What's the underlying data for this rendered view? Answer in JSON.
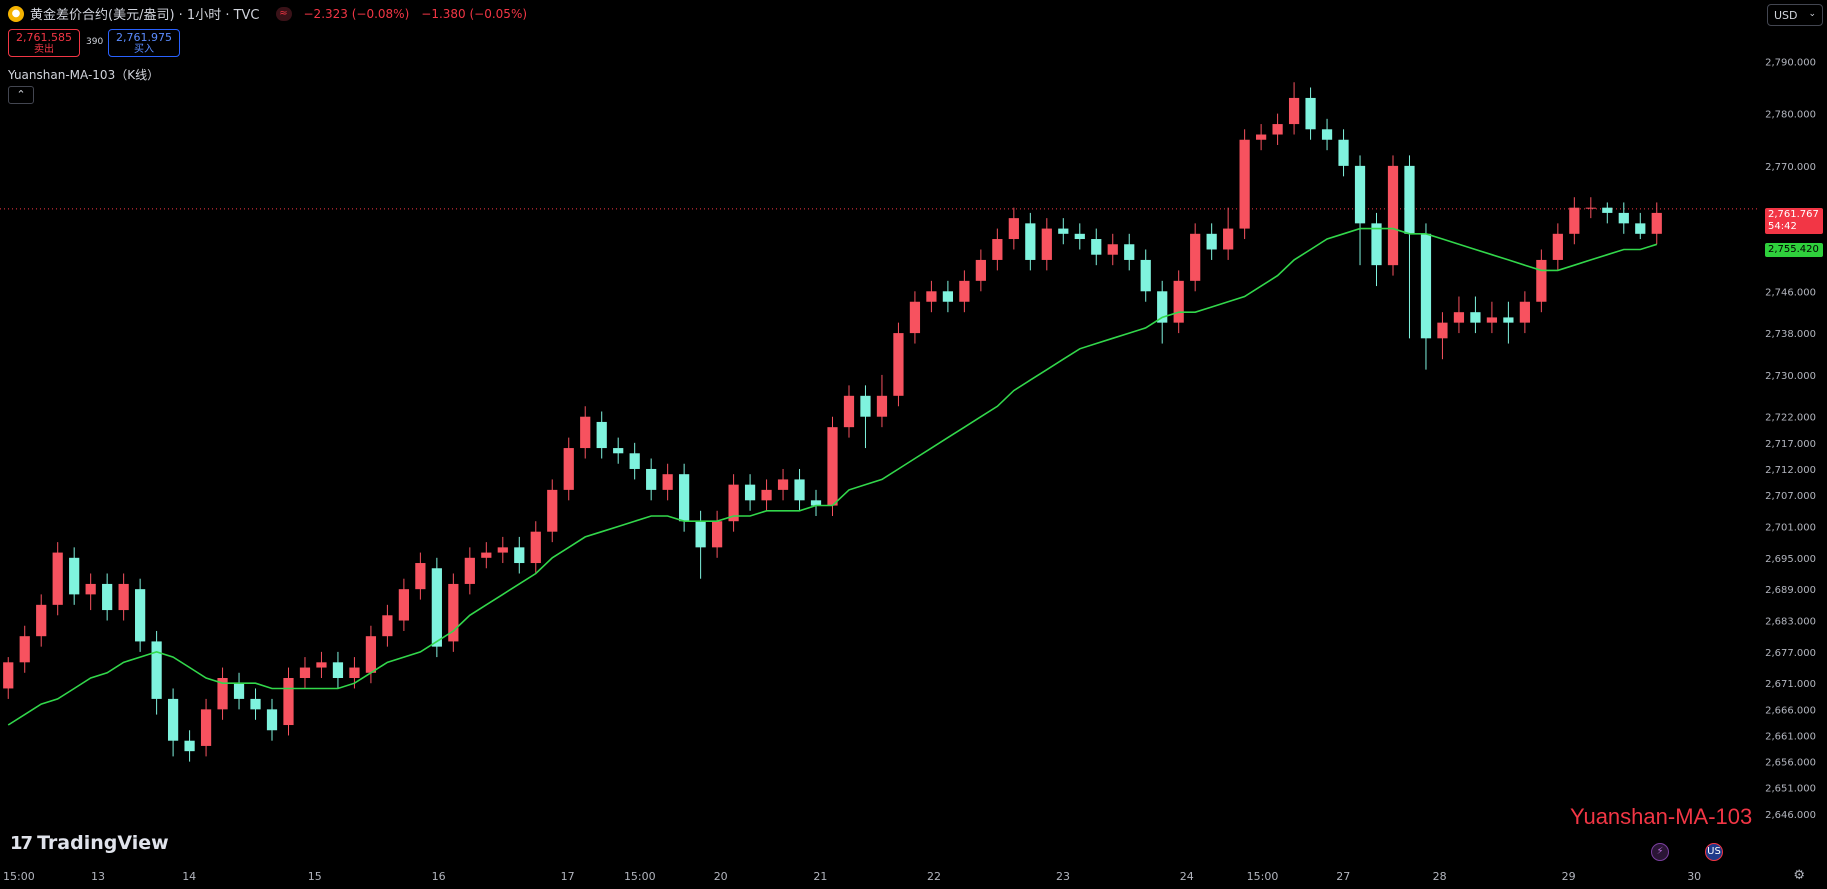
{
  "header": {
    "symbol_icon": "gold-coin-icon",
    "title": "黄金差价合约(美元/盎司) · 1小时 · TVC",
    "change_icon": "approx-icon",
    "change_icon_glyph": "≈",
    "change_pct": "−2.323 (−0.08%)",
    "change_abs": "−1.380 (−0.05%)"
  },
  "trade": {
    "sell_price": "2,761.585",
    "sell_label": "卖出",
    "spread": "390",
    "buy_price": "2,761.975",
    "buy_label": "买入"
  },
  "indicator": {
    "label": "Yuanshan-MA-103（K线）",
    "collapse_glyph": "⌃"
  },
  "currency": {
    "value": "USD",
    "chevron": "⌄"
  },
  "price_tags": {
    "last_price": "2,761.767",
    "countdown": "54:42",
    "ma_value": "2,755.420"
  },
  "watermark": {
    "logo": "17",
    "text": "TradingView"
  },
  "overlay_text": "Yuanshan-MA-103",
  "bottom_icons": {
    "flash": "⚡",
    "flag": "US"
  },
  "settings_icon": "⚙",
  "colors": {
    "up": "#f7525f",
    "down": "#7ff3de",
    "ma": "#32d74b",
    "grid_text": "#b2b5be",
    "current_line": "#f23645"
  },
  "chart_data": {
    "type": "candlestick",
    "title": "",
    "ylim": [
      2641,
      2796
    ],
    "y_ticks": [
      2790,
      2780,
      2770,
      2761.767,
      2746,
      2738,
      2730,
      2722,
      2717,
      2712,
      2707,
      2701,
      2695,
      2689,
      2683,
      2677,
      2671,
      2666,
      2661,
      2656,
      2651,
      2646
    ],
    "y_tick_labels": [
      "2,790.000",
      "2,780.000",
      "2,770.000",
      "",
      "2,746.000",
      "2,738.000",
      "2,730.000",
      "2,722.000",
      "2,717.000",
      "2,712.000",
      "2,707.000",
      "2,701.000",
      "2,695.000",
      "2,689.000",
      "2,683.000",
      "2,677.000",
      "2,671.000",
      "2,666.000",
      "2,661.000",
      "2,656.000",
      "2,651.000",
      "2,646.000"
    ],
    "x_ticks": [
      {
        "label": "15:00",
        "pos": 0.011
      },
      {
        "label": "13",
        "pos": 0.057
      },
      {
        "label": "14",
        "pos": 0.11
      },
      {
        "label": "15",
        "pos": 0.183
      },
      {
        "label": "16",
        "pos": 0.255
      },
      {
        "label": "17",
        "pos": 0.33
      },
      {
        "label": "15:00",
        "pos": 0.372
      },
      {
        "label": "20",
        "pos": 0.419
      },
      {
        "label": "21",
        "pos": 0.477
      },
      {
        "label": "22",
        "pos": 0.543
      },
      {
        "label": "23",
        "pos": 0.618
      },
      {
        "label": "24",
        "pos": 0.69
      },
      {
        "label": "15:00",
        "pos": 0.734
      },
      {
        "label": "27",
        "pos": 0.781
      },
      {
        "label": "28",
        "pos": 0.837
      },
      {
        "label": "29",
        "pos": 0.912
      },
      {
        "label": "30",
        "pos": 0.985
      }
    ],
    "current_price": 2761.767,
    "ma_series": {
      "name": "Yuanshan-MA-103",
      "values": [
        2663,
        2665,
        2667,
        2668,
        2670,
        2672,
        2673,
        2675,
        2676,
        2677,
        2676,
        2674,
        2672,
        2671,
        2671,
        2671,
        2670,
        2670,
        2670,
        2670,
        2670,
        2671,
        2673,
        2675,
        2676,
        2677,
        2679,
        2681,
        2684,
        2686,
        2688,
        2690,
        2692,
        2695,
        2697,
        2699,
        2700,
        2701,
        2702,
        2703,
        2703,
        2702,
        2702,
        2702,
        2703,
        2703,
        2704,
        2704,
        2704,
        2705,
        2705,
        2708,
        2709,
        2710,
        2712,
        2714,
        2716,
        2718,
        2720,
        2722,
        2724,
        2727,
        2729,
        2731,
        2733,
        2735,
        2736,
        2737,
        2738,
        2739,
        2741,
        2742,
        2742,
        2743,
        2744,
        2745,
        2747,
        2749,
        2752,
        2754,
        2756,
        2757,
        2758,
        2758,
        2758,
        2757,
        2757,
        2756,
        2755,
        2754,
        2753,
        2752,
        2751,
        2750,
        2750,
        2751,
        2752,
        2753,
        2754,
        2754,
        2755
      ]
    },
    "candles": [
      [
        2670,
        2675,
        2668,
        2676
      ],
      [
        2675,
        2680,
        2673,
        2682
      ],
      [
        2680,
        2686,
        2678,
        2688
      ],
      [
        2686,
        2696,
        2684,
        2698
      ],
      [
        2695,
        2688,
        2686,
        2697
      ],
      [
        2688,
        2690,
        2685,
        2692
      ],
      [
        2690,
        2685,
        2683,
        2692
      ],
      [
        2685,
        2690,
        2683,
        2692
      ],
      [
        2689,
        2679,
        2677,
        2691
      ],
      [
        2679,
        2668,
        2665,
        2681
      ],
      [
        2668,
        2660,
        2657,
        2670
      ],
      [
        2660,
        2658,
        2656,
        2662
      ],
      [
        2659,
        2666,
        2657,
        2668
      ],
      [
        2666,
        2672,
        2664,
        2674
      ],
      [
        2671,
        2668,
        2666,
        2673
      ],
      [
        2668,
        2666,
        2664,
        2670
      ],
      [
        2666,
        2662,
        2660,
        2668
      ],
      [
        2663,
        2672,
        2661,
        2674
      ],
      [
        2672,
        2674,
        2670,
        2676
      ],
      [
        2674,
        2675,
        2672,
        2677
      ],
      [
        2675,
        2672,
        2670,
        2677
      ],
      [
        2672,
        2674,
        2670,
        2676
      ],
      [
        2673,
        2680,
        2671,
        2682
      ],
      [
        2680,
        2684,
        2678,
        2686
      ],
      [
        2683,
        2689,
        2681,
        2691
      ],
      [
        2689,
        2694,
        2687,
        2696
      ],
      [
        2693,
        2678,
        2676,
        2695
      ],
      [
        2679,
        2690,
        2677,
        2692
      ],
      [
        2690,
        2695,
        2688,
        2697
      ],
      [
        2695,
        2696,
        2693,
        2698
      ],
      [
        2696,
        2697,
        2694,
        2699
      ],
      [
        2697,
        2694,
        2692,
        2699
      ],
      [
        2694,
        2700,
        2692,
        2702
      ],
      [
        2700,
        2708,
        2698,
        2710
      ],
      [
        2708,
        2716,
        2706,
        2718
      ],
      [
        2716,
        2722,
        2714,
        2724
      ],
      [
        2721,
        2716,
        2714,
        2723
      ],
      [
        2716,
        2715,
        2713,
        2718
      ],
      [
        2715,
        2712,
        2710,
        2717
      ],
      [
        2712,
        2708,
        2706,
        2714
      ],
      [
        2708,
        2711,
        2706,
        2713
      ],
      [
        2711,
        2702,
        2700,
        2713
      ],
      [
        2702,
        2697,
        2691,
        2704
      ],
      [
        2697,
        2702,
        2695,
        2704
      ],
      [
        2702,
        2709,
        2700,
        2711
      ],
      [
        2709,
        2706,
        2704,
        2711
      ],
      [
        2706,
        2708,
        2704,
        2710
      ],
      [
        2708,
        2710,
        2706,
        2712
      ],
      [
        2710,
        2706,
        2704,
        2712
      ],
      [
        2706,
        2705,
        2703,
        2708
      ],
      [
        2705,
        2720,
        2703,
        2722
      ],
      [
        2720,
        2726,
        2718,
        2728
      ],
      [
        2726,
        2722,
        2716,
        2728
      ],
      [
        2722,
        2726,
        2720,
        2730
      ],
      [
        2726,
        2738,
        2724,
        2740
      ],
      [
        2738,
        2744,
        2736,
        2746
      ],
      [
        2744,
        2746,
        2742,
        2748
      ],
      [
        2746,
        2744,
        2742,
        2748
      ],
      [
        2744,
        2748,
        2742,
        2750
      ],
      [
        2748,
        2752,
        2746,
        2754
      ],
      [
        2752,
        2756,
        2750,
        2758
      ],
      [
        2756,
        2760,
        2754,
        2762
      ],
      [
        2759,
        2752,
        2750,
        2761
      ],
      [
        2752,
        2758,
        2750,
        2760
      ],
      [
        2758,
        2757,
        2755,
        2760
      ],
      [
        2757,
        2756,
        2754,
        2759
      ],
      [
        2756,
        2753,
        2751,
        2758
      ],
      [
        2753,
        2755,
        2751,
        2757
      ],
      [
        2755,
        2752,
        2750,
        2757
      ],
      [
        2752,
        2746,
        2744,
        2754
      ],
      [
        2746,
        2740,
        2736,
        2748
      ],
      [
        2740,
        2748,
        2738,
        2750
      ],
      [
        2748,
        2757,
        2746,
        2759
      ],
      [
        2757,
        2754,
        2752,
        2759
      ],
      [
        2754,
        2758,
        2752,
        2762
      ],
      [
        2758,
        2775,
        2756,
        2777
      ],
      [
        2775,
        2776,
        2773,
        2778
      ],
      [
        2776,
        2778,
        2774,
        2780
      ],
      [
        2778,
        2783,
        2776,
        2786
      ],
      [
        2783,
        2777,
        2775,
        2785
      ],
      [
        2777,
        2775,
        2773,
        2779
      ],
      [
        2775,
        2770,
        2768,
        2777
      ],
      [
        2770,
        2759,
        2751,
        2772
      ],
      [
        2759,
        2751,
        2747,
        2761
      ],
      [
        2751,
        2770,
        2749,
        2772
      ],
      [
        2770,
        2757,
        2737,
        2772
      ],
      [
        2757,
        2737,
        2731,
        2759
      ],
      [
        2737,
        2740,
        2733,
        2742
      ],
      [
        2740,
        2742,
        2738,
        2745
      ],
      [
        2742,
        2740,
        2738,
        2745
      ],
      [
        2740,
        2741,
        2738,
        2744
      ],
      [
        2741,
        2740,
        2736,
        2744
      ],
      [
        2740,
        2744,
        2738,
        2746
      ],
      [
        2744,
        2752,
        2742,
        2754
      ],
      [
        2752,
        2757,
        2750,
        2759
      ],
      [
        2757,
        2762,
        2755,
        2764
      ],
      [
        2762,
        2762,
        2760,
        2764
      ],
      [
        2762,
        2761,
        2759,
        2763
      ],
      [
        2761,
        2759,
        2757,
        2763
      ],
      [
        2759,
        2757,
        2756,
        2761
      ],
      [
        2757,
        2761,
        2755,
        2763
      ]
    ]
  }
}
